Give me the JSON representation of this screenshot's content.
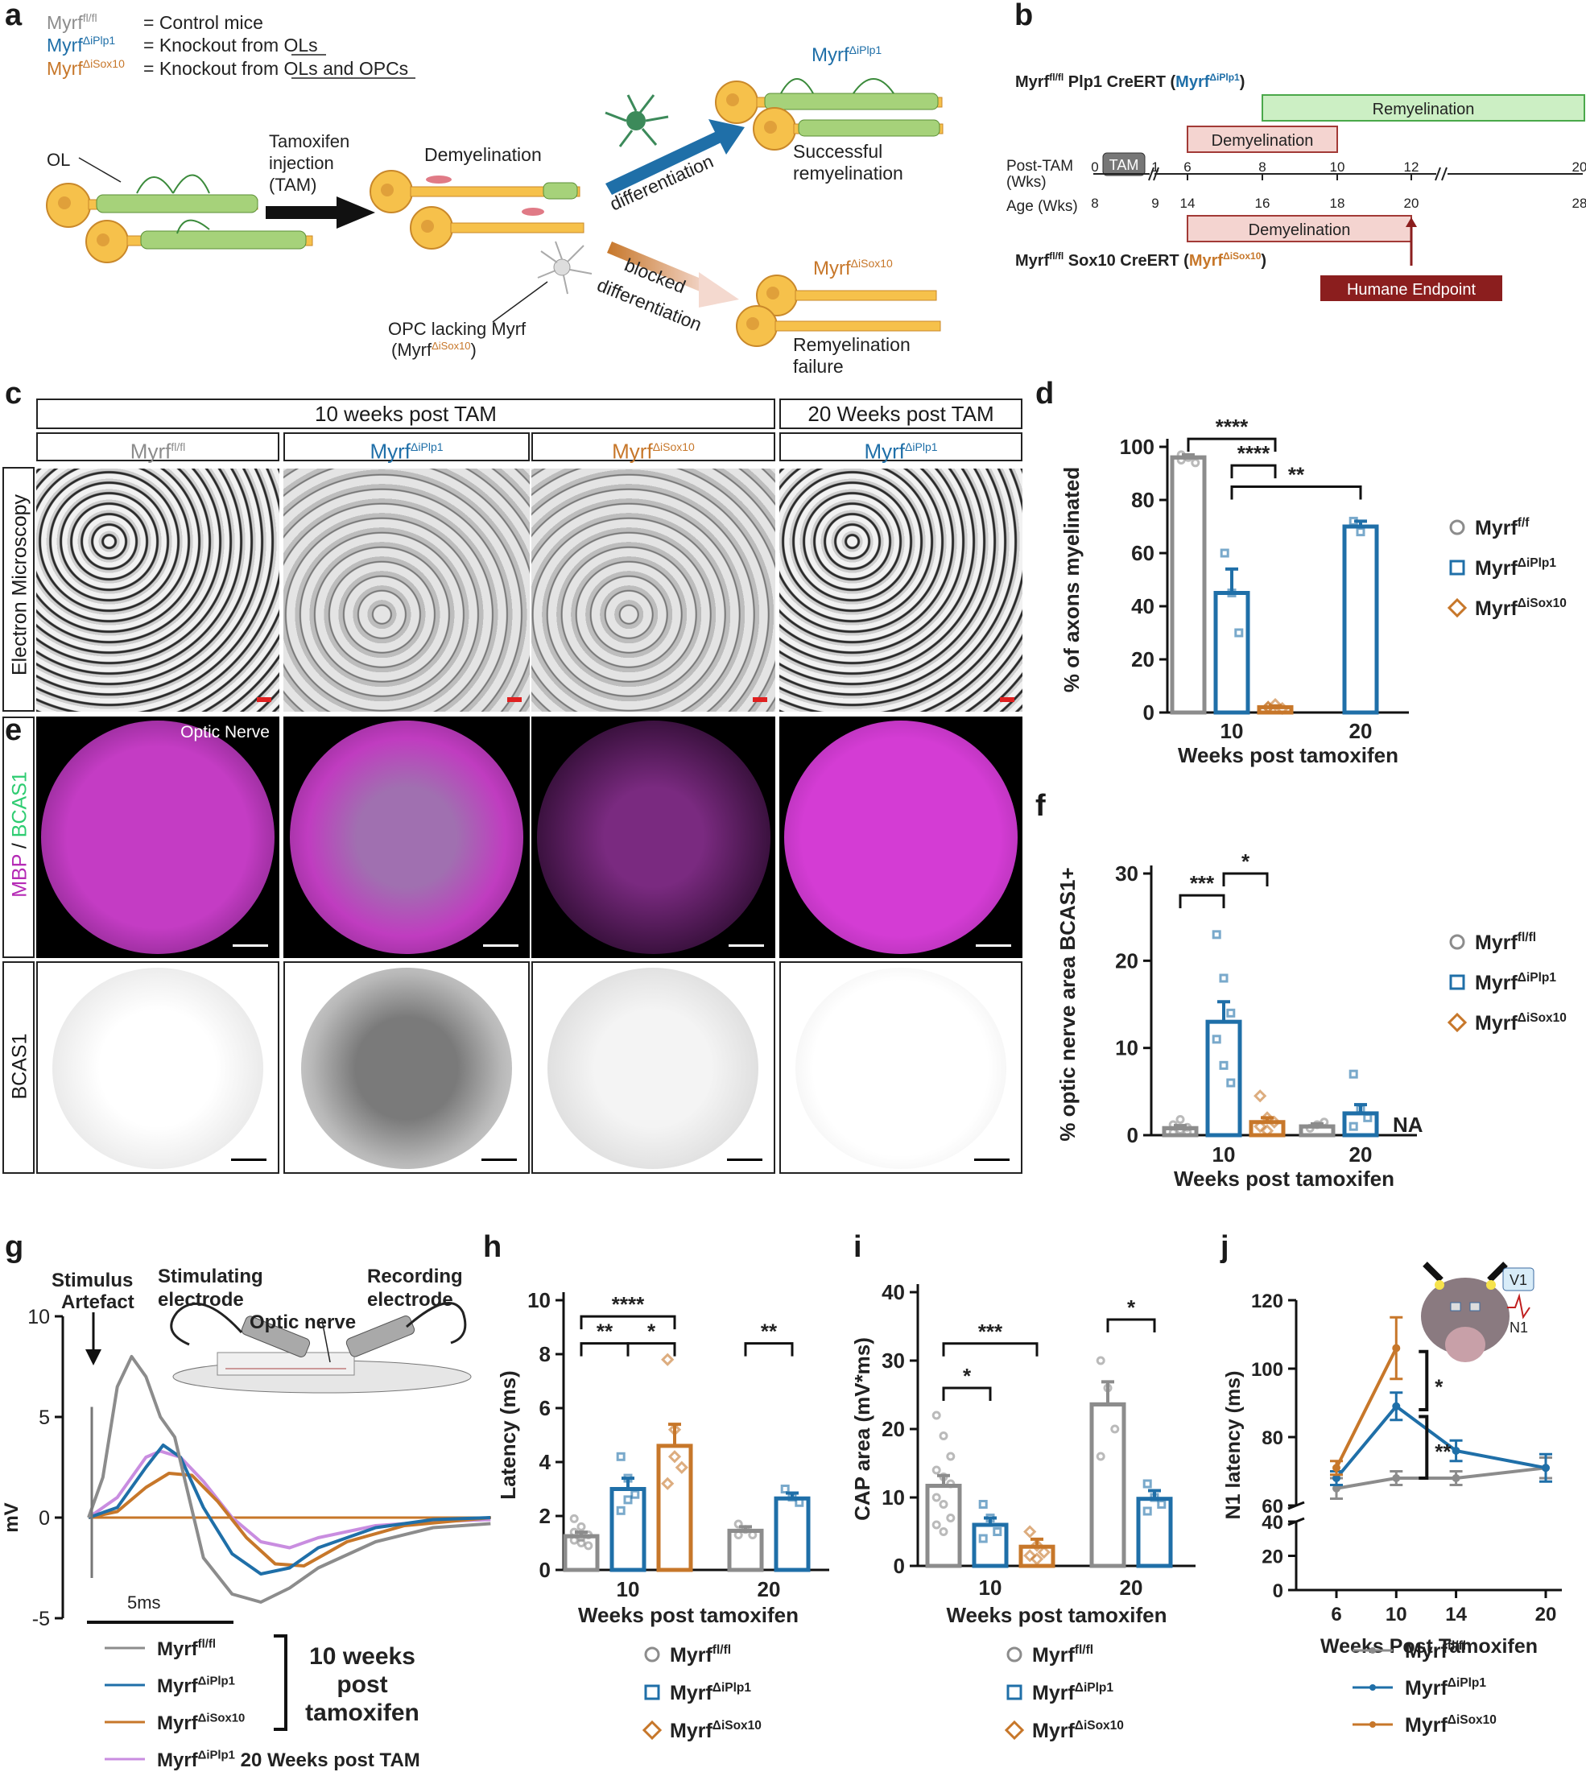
{
  "colors": {
    "control": "#8c8c8c",
    "iplp1": "#1f6fa8",
    "isox10": "#c7772a",
    "iplp1_20wk": "#c98de0",
    "magenta": "#b52ab5",
    "green": "#2ecc71"
  },
  "panel_labels": {
    "a": "a",
    "b": "b",
    "c": "c",
    "d": "d",
    "e": "e",
    "f": "f",
    "g": "g",
    "h": "h",
    "i": "i",
    "j": "j"
  },
  "panel_a": {
    "legend": [
      {
        "genotype": "Myrf",
        "sup": "fl/fl",
        "desc": "= Control mice"
      },
      {
        "genotype": "Myrf",
        "sup": "ΔiPlp1",
        "desc": "= Knockout from OLs"
      },
      {
        "genotype": "Myrf",
        "sup": "ΔiSox10",
        "desc": "= Knockout from OLs and OPCs"
      }
    ],
    "ol_label": "OL",
    "tamoxifen_label": "Tamoxifen injection (TAM)",
    "tam_line1": "Tamoxifen",
    "tam_line2": "injection",
    "tam_line3": "(TAM)",
    "demyelination_label": "Demyelination",
    "differentiation_label": "differentiation",
    "blocked_line1": "blocked",
    "blocked_line2": "differentiation",
    "opc_line1": "OPC lacking Myrf",
    "opc_line2_prefix": "(Myrf",
    "opc_line2_sup": "ΔiSox10",
    "opc_line2_suffix": ")",
    "top_genotype": "Myrf",
    "top_sup": "ΔiPlp1",
    "success_line1": "Successful",
    "success_line2": "remyelination",
    "bottom_genotype": "Myrf",
    "bottom_sup": "ΔiSox10",
    "failure_line1": "Remyelination",
    "failure_line2": "failure"
  },
  "panel_b": {
    "plp1_title_a": "Myrf",
    "plp1_title_sup": "fl/fl",
    "plp1_title_b": " Plp1 CreERT (",
    "plp1_title_geno": "Myrf",
    "plp1_title_geno_sup": "ΔiPlp1",
    "plp1_title_c": ")",
    "remyelination": "Remyelination",
    "demyelination_top": "Demyelination",
    "post_tam_line1": "Post-TAM",
    "post_tam_line2": "(Wks)",
    "age_label": "Age (Wks)",
    "tam_box": "TAM",
    "post_ticks": [
      "0",
      "1",
      "6",
      "8",
      "10",
      "12",
      "20"
    ],
    "age_ticks": [
      "8",
      "9",
      "14",
      "16",
      "18",
      "20",
      "28"
    ],
    "demyelination_bottom": "Demyelination",
    "sox10_title_a": "Myrf",
    "sox10_title_sup": "fl/fl",
    "sox10_title_b": " Sox10 CreERT (",
    "sox10_title_geno": "Myrf",
    "sox10_title_geno_sup": "ΔiSox10",
    "sox10_title_c": ")",
    "humane_endpoint": "Humane Endpoint"
  },
  "panel_c": {
    "header_10": "10 weeks post TAM",
    "header_20": "20 Weeks post TAM",
    "columns": [
      {
        "geno": "Myrf",
        "sup": "fl/fl"
      },
      {
        "geno": "Myrf",
        "sup": "ΔiPlp1"
      },
      {
        "geno": "Myrf",
        "sup": "ΔiSox10"
      },
      {
        "geno": "Myrf",
        "sup": "ΔiPlp1"
      }
    ],
    "row_label": "Electron Microscopy"
  },
  "panel_e": {
    "row1_label_a": "MBP",
    "row1_label_sep": " / ",
    "row1_label_b": "BCAS1",
    "optic_nerve": "Optic Nerve",
    "row2_label": "BCAS1"
  },
  "panel_g": {
    "stim_artefact_1": "Stimulus",
    "stim_artefact_2": "Artefact",
    "stim_electrode_1": "Stimulating",
    "stim_electrode_2": "electrode",
    "optic_nerve": "Optic nerve",
    "rec_electrode_1": "Recording",
    "rec_electrode_2": "electrode",
    "scale": "5ms",
    "group_label_1": "10 weeks",
    "group_label_2": "post",
    "group_label_3": "tamoxifen",
    "legend": [
      {
        "geno": "Myrf",
        "sup": "fl/fl",
        "suffix": ""
      },
      {
        "geno": "Myrf",
        "sup": "ΔiPlp1",
        "suffix": ""
      },
      {
        "geno": "Myrf",
        "sup": "ΔiSox10",
        "suffix": ""
      },
      {
        "geno": "Myrf",
        "sup": "ΔiPlp1",
        "suffix": " 20 Weeks post TAM"
      }
    ]
  },
  "legend_d": [
    {
      "geno": "Myrf",
      "sup": "f/f"
    },
    {
      "geno": "Myrf",
      "sup": "ΔiPlp1"
    },
    {
      "geno": "Myrf",
      "sup": "ΔiSox10"
    }
  ],
  "legend_f": [
    {
      "geno": "Myrf",
      "sup": "fl/fl"
    },
    {
      "geno": "Myrf",
      "sup": "ΔiPlp1"
    },
    {
      "geno": "Myrf",
      "sup": "ΔiSox10"
    }
  ],
  "legend_hi": [
    {
      "geno": "Myrf",
      "sup": "fl/fl"
    },
    {
      "geno": "Myrf",
      "sup": "ΔiPlp1"
    },
    {
      "geno": "Myrf",
      "sup": "ΔiSox10"
    }
  ],
  "chart_data": [
    {
      "id": "d",
      "type": "bar",
      "ylabel": "% of axons myelinated",
      "xlabel": "Weeks post tamoxifen",
      "ylim": [
        0,
        100
      ],
      "yticks": [
        0,
        20,
        40,
        60,
        80,
        100
      ],
      "categories": [
        "10",
        "20"
      ],
      "series": [
        {
          "name": "Myrf f/f",
          "values": [
            96,
            null
          ],
          "err": [
            1,
            null
          ]
        },
        {
          "name": "Myrf ΔiPlp1",
          "values": [
            45,
            70
          ],
          "err": [
            9,
            2
          ]
        },
        {
          "name": "Myrf ΔiSox10",
          "values": [
            2,
            null
          ],
          "err": [
            0.5,
            null
          ]
        }
      ],
      "points": [
        [
          [
            97,
            96,
            94,
            95
          ],
          []
        ],
        [
          [
            60,
            45,
            30
          ],
          [
            72,
            68
          ]
        ],
        [
          [
            2,
            3,
            1.5,
            2
          ],
          []
        ]
      ],
      "significance": [
        {
          "label": "****",
          "from": "10:Myrf f/f",
          "to": "10:Myrf ΔiSox10"
        },
        {
          "label": "****",
          "from": "10:Myrf ΔiPlp1",
          "to": "10:Myrf ΔiSox10"
        },
        {
          "label": "**",
          "from": "10:Myrf ΔiPlp1",
          "to": "20:Myrf ΔiPlp1"
        }
      ]
    },
    {
      "id": "f",
      "type": "bar",
      "ylabel": "% optic nerve area BCAS1+",
      "xlabel": "Weeks post tamoxifen",
      "ylim": [
        0,
        30
      ],
      "yticks": [
        0,
        10,
        20,
        30
      ],
      "categories": [
        "10",
        "20"
      ],
      "series": [
        {
          "name": "Myrf fl/fl",
          "values": [
            0.8,
            1.0
          ],
          "err": [
            0.3,
            0.3
          ]
        },
        {
          "name": "Myrf ΔiPlp1",
          "values": [
            13,
            2.5
          ],
          "err": [
            2.3,
            1
          ]
        },
        {
          "name": "Myrf ΔiSox10",
          "values": [
            1.5,
            null
          ],
          "err": [
            0.5,
            null
          ]
        }
      ],
      "points": [
        [
          [
            0.3,
            0.6,
            0.9,
            1.2,
            1.8,
            0.4
          ],
          [
            0.8,
            1.2,
            1.5
          ]
        ],
        [
          [
            23,
            18,
            14,
            11,
            8,
            6
          ],
          [
            7,
            3,
            2,
            1
          ]
        ],
        [
          [
            4.5,
            2,
            1.5,
            1,
            0.5
          ],
          []
        ]
      ],
      "annotations": [
        "NA"
      ],
      "significance": [
        {
          "label": "***",
          "from": "10:Myrf fl/fl",
          "to": "10:Myrf ΔiPlp1"
        },
        {
          "label": "*",
          "from": "10:Myrf ΔiPlp1",
          "to": "10:Myrf ΔiSox10"
        }
      ]
    },
    {
      "id": "g",
      "type": "line",
      "ylabel": "mV",
      "ylim": [
        -5,
        10
      ],
      "yticks": [
        -5,
        0,
        5,
        10
      ],
      "series": [
        {
          "name": "Myrf fl/fl",
          "x": [
            0,
            0.5,
            1.0,
            1.5,
            2.0,
            2.5,
            3.0,
            3.5,
            4.0,
            5.0,
            6.0,
            7.0,
            8.0,
            10.0,
            12.0,
            14.0
          ],
          "y": [
            0,
            2,
            6.5,
            8,
            7,
            5,
            4,
            1,
            -2,
            -3.8,
            -4.2,
            -3.5,
            -2.5,
            -1.2,
            -0.5,
            -0.3
          ]
        },
        {
          "name": "Myrf ΔiPlp1",
          "x": [
            0,
            1,
            2,
            2.6,
            3.2,
            4,
            5,
            6,
            7,
            8,
            10,
            12,
            14
          ],
          "y": [
            0,
            0.5,
            2.5,
            3.6,
            3,
            0.5,
            -1.8,
            -2.8,
            -2.5,
            -1.5,
            -0.5,
            -0.1,
            0
          ]
        },
        {
          "name": "Myrf ΔiSox10",
          "x": [
            0,
            1,
            2,
            2.8,
            3.6,
            4.5,
            5.5,
            6.5,
            7.5,
            9,
            11,
            14
          ],
          "y": [
            0,
            0.3,
            1.5,
            2.2,
            2.1,
            0.8,
            -1,
            -2.3,
            -2.4,
            -1.2,
            -0.4,
            0
          ]
        },
        {
          "name": "Myrf ΔiPlp1 20 Weeks post TAM",
          "x": [
            0,
            1,
            2,
            2.5,
            3.2,
            4,
            5,
            6,
            7,
            8,
            10,
            12,
            14
          ],
          "y": [
            0,
            1,
            3,
            3.3,
            3,
            1.8,
            0,
            -1.2,
            -1.5,
            -1.0,
            -0.4,
            -0.2,
            -0.1
          ]
        }
      ]
    },
    {
      "id": "h",
      "type": "bar",
      "ylabel": "Latency (ms)",
      "xlabel": "Weeks post tamoxifen",
      "ylim": [
        0,
        10
      ],
      "yticks": [
        0,
        2,
        4,
        6,
        8,
        10
      ],
      "categories": [
        "10",
        "20"
      ],
      "series": [
        {
          "name": "Myrf fl/fl",
          "values": [
            1.25,
            1.45
          ],
          "err": [
            0.15,
            0.15
          ]
        },
        {
          "name": "Myrf ΔiPlp1",
          "values": [
            3.0,
            2.65
          ],
          "err": [
            0.4,
            0.2
          ]
        },
        {
          "name": "Myrf ΔiSox10",
          "values": [
            4.6,
            null
          ],
          "err": [
            0.8,
            null
          ]
        }
      ],
      "points": [
        [
          [
            1.9,
            1.6,
            1.3,
            1.1,
            1.0,
            0.9,
            1.4,
            1.2
          ],
          [
            1.7,
            1.5,
            1.3,
            1.3
          ]
        ],
        [
          [
            4.2,
            3.4,
            2.8,
            2.2,
            2.6
          ],
          [
            3.0,
            2.7,
            2.5
          ]
        ],
        [
          [
            7.8,
            5.2,
            3.8,
            3.2,
            4.2
          ],
          []
        ]
      ],
      "significance": [
        {
          "label": "****",
          "from": "10:Myrf fl/fl",
          "to": "10:Myrf ΔiSox10"
        },
        {
          "label": "**",
          "from": "10:Myrf fl/fl",
          "to": "10:Myrf ΔiPlp1"
        },
        {
          "label": "*",
          "from": "10:Myrf ΔiPlp1",
          "to": "10:Myrf ΔiSox10"
        },
        {
          "label": "**",
          "from": "20:Myrf fl/fl",
          "to": "20:Myrf ΔiPlp1"
        }
      ]
    },
    {
      "id": "i",
      "type": "bar",
      "ylabel": "CAP area (mV*ms)",
      "xlabel": "Weeks post tamoxifen",
      "ylim": [
        0,
        40
      ],
      "yticks": [
        0,
        10,
        20,
        30,
        40
      ],
      "categories": [
        "10",
        "20"
      ],
      "series": [
        {
          "name": "Myrf fl/fl",
          "values": [
            11.7,
            23.6
          ],
          "err": [
            1.5,
            3.3
          ]
        },
        {
          "name": "Myrf ΔiPlp1",
          "values": [
            6.0,
            9.8
          ],
          "err": [
            1.0,
            1.2
          ]
        },
        {
          "name": "Myrf ΔiSox10",
          "values": [
            2.8,
            null
          ],
          "err": [
            1.1,
            null
          ]
        }
      ],
      "points": [
        [
          [
            22,
            19,
            16,
            14,
            13,
            12,
            10,
            9,
            7,
            6,
            5
          ],
          [
            30,
            26,
            20,
            16
          ]
        ],
        [
          [
            9,
            7,
            5,
            4
          ],
          [
            12,
            10,
            9,
            8
          ]
        ],
        [
          [
            5,
            3,
            2,
            1.5,
            1
          ],
          []
        ]
      ],
      "significance": [
        {
          "label": "***",
          "from": "10:Myrf fl/fl",
          "to": "10:Myrf ΔiSox10"
        },
        {
          "label": "*",
          "from": "10:Myrf fl/fl",
          "to": "10:Myrf ΔiPlp1"
        },
        {
          "label": "*",
          "from": "20:Myrf fl/fl",
          "to": "20:Myrf ΔiPlp1"
        }
      ]
    },
    {
      "id": "j",
      "type": "line",
      "ylabel": "N1 latency (ms)",
      "xlabel": "Weeks Post Tamoxifen",
      "yticks": [
        0,
        20,
        40,
        60,
        80,
        100,
        120
      ],
      "ybreak": [
        40,
        60
      ],
      "x": [
        6,
        10,
        14,
        20
      ],
      "series": [
        {
          "name": "Myrf fl/fl",
          "values": [
            65,
            68,
            68,
            71
          ],
          "err": [
            3,
            2,
            2,
            3
          ]
        },
        {
          "name": "Myrf ΔiPlp1",
          "values": [
            68,
            89,
            76,
            71
          ],
          "err": [
            2,
            4,
            3,
            4
          ]
        },
        {
          "name": "Myrf ΔiSox10",
          "values": [
            71,
            106,
            null,
            null
          ],
          "err": [
            2,
            9,
            null,
            null
          ]
        }
      ],
      "significance": [
        {
          "label": "*",
          "between": [
            "Myrf ΔiSox10",
            "Myrf ΔiPlp1"
          ],
          "x": 10
        },
        {
          "label": "**",
          "between": [
            "Myrf ΔiPlp1",
            "Myrf fl/fl"
          ],
          "x": 10
        }
      ],
      "inset_label": "V1",
      "inset_trace_label": "N1",
      "legend": [
        {
          "geno": "Myrf",
          "sup": "fl/fl"
        },
        {
          "geno": "Myrf",
          "sup": "ΔiPlp1"
        },
        {
          "geno": "Myrf",
          "sup": "ΔiSox10"
        }
      ]
    }
  ]
}
